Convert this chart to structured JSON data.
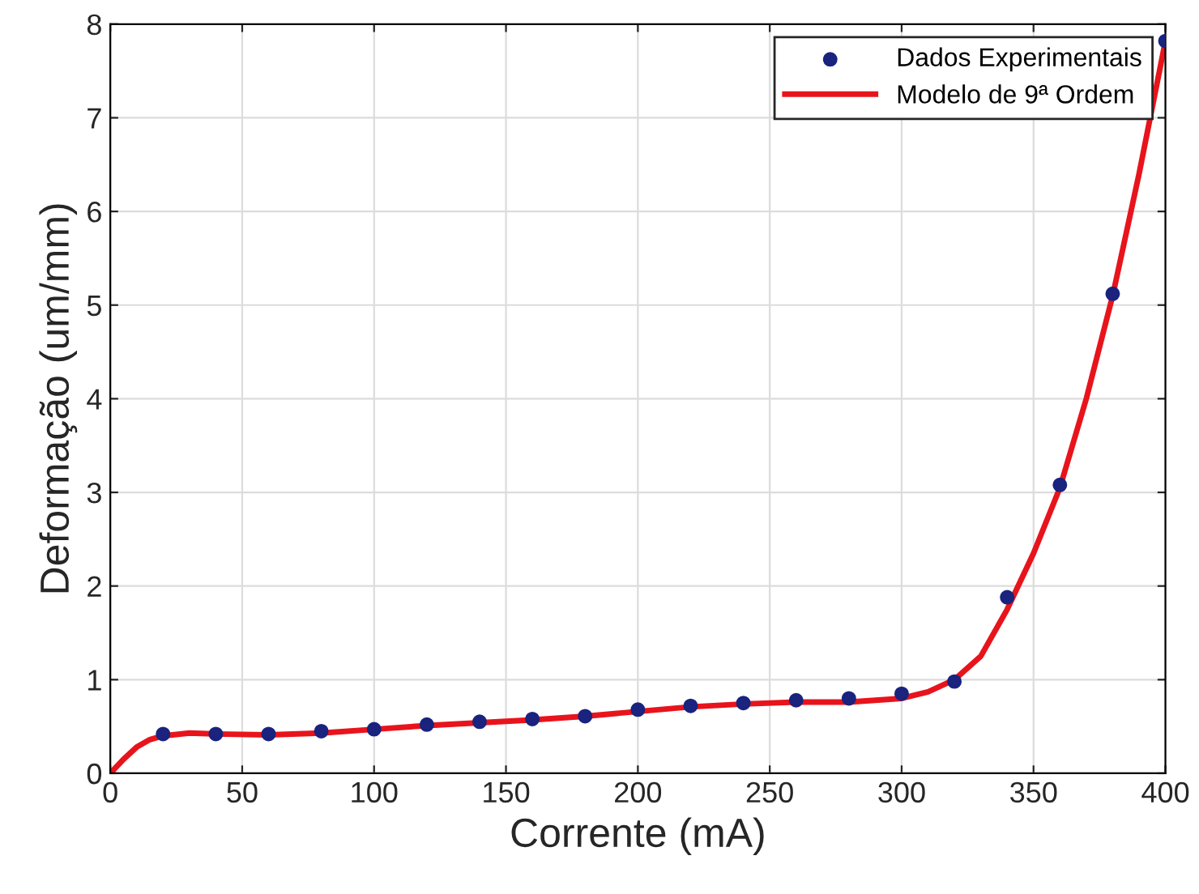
{
  "chart_data": {
    "type": "scatter",
    "xlabel": "Corrente (mA)",
    "ylabel": "Deformação (um/mm)",
    "xlim": [
      0,
      400
    ],
    "ylim": [
      0,
      8
    ],
    "xticks": [
      0,
      50,
      100,
      150,
      200,
      250,
      300,
      350,
      400
    ],
    "yticks": [
      0,
      1,
      2,
      3,
      4,
      5,
      6,
      7,
      8
    ],
    "grid": true,
    "legend": "top right",
    "series": [
      {
        "name": "Dados Experimentais",
        "marker": "circle",
        "color": "#1a237e",
        "x": [
          20,
          40,
          60,
          80,
          100,
          120,
          140,
          160,
          180,
          200,
          220,
          240,
          260,
          280,
          300,
          320,
          340,
          360,
          380,
          400
        ],
        "values": [
          0.42,
          0.42,
          0.42,
          0.45,
          0.47,
          0.52,
          0.55,
          0.58,
          0.61,
          0.68,
          0.72,
          0.75,
          0.78,
          0.8,
          0.85,
          0.98,
          1.88,
          3.08,
          5.12,
          7.82
        ]
      },
      {
        "name": "Modelo de 9ª Ordem",
        "type": "line",
        "line_style": "solid",
        "color": "#e8141c",
        "x": [
          0,
          5,
          10,
          15,
          20,
          30,
          40,
          60,
          80,
          100,
          120,
          140,
          160,
          180,
          200,
          220,
          240,
          260,
          280,
          300,
          310,
          320,
          330,
          340,
          350,
          360,
          370,
          380,
          390,
          400
        ],
        "values": [
          0,
          0.15,
          0.28,
          0.36,
          0.4,
          0.43,
          0.42,
          0.41,
          0.43,
          0.47,
          0.51,
          0.54,
          0.57,
          0.61,
          0.66,
          0.71,
          0.74,
          0.76,
          0.76,
          0.8,
          0.87,
          1.0,
          1.25,
          1.75,
          2.35,
          3.05,
          4.0,
          5.1,
          6.4,
          7.82
        ]
      }
    ]
  }
}
